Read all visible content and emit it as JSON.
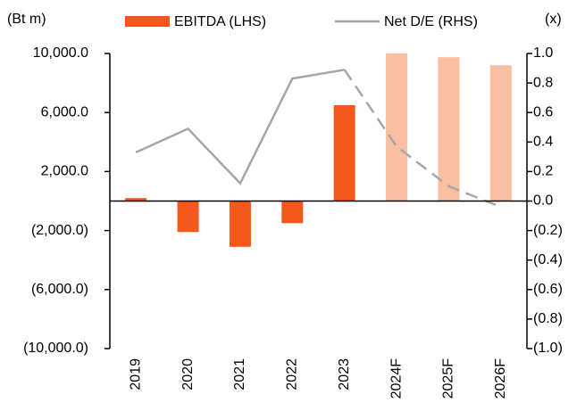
{
  "chart_data": {
    "type": "bar",
    "y_unit": "(Bt m)",
    "y2_unit": "(x)",
    "categories": [
      "2019",
      "2020",
      "2021",
      "2022",
      "2023",
      "2024F",
      "2025F",
      "2026F"
    ],
    "series": [
      {
        "name": "EBITDA (LHS)",
        "type": "bar",
        "color": "#f4581d",
        "colors": [
          "#f4581d",
          "#f4581d",
          "#f4581d",
          "#f4581d",
          "#f4581d",
          "#f9bfa0",
          "#f9bfa0",
          "#f9bfa0"
        ],
        "values": [
          200,
          -2100,
          -3100,
          -1500,
          6500,
          10000,
          9750,
          9200
        ]
      },
      {
        "name": "Net D/E (RHS)",
        "type": "line",
        "axis": "y2",
        "color": "#a6a6a6",
        "dash_from_index": 4,
        "values": [
          0.33,
          0.49,
          0.12,
          0.83,
          0.89,
          0.37,
          0.1,
          -0.04
        ]
      }
    ],
    "ylim": [
      -10000,
      10000
    ],
    "yticks": [
      {
        "value": 10000,
        "label": "10,000.0"
      },
      {
        "value": 6000,
        "label": "6,000.0"
      },
      {
        "value": 2000,
        "label": "2,000.0"
      },
      {
        "value": -2000,
        "label": "(2,000.0)"
      },
      {
        "value": -6000,
        "label": "(6,000.0)"
      },
      {
        "value": -10000,
        "label": "(10,000.0)"
      }
    ],
    "y2lim": [
      -1,
      1
    ],
    "y2ticks": [
      {
        "value": 1,
        "label": "1.0"
      },
      0.8,
      0.6,
      0.4,
      0.2,
      {
        "value": 0,
        "label": "0.0"
      },
      {
        "value": -0.2,
        "label": "(0.2)"
      },
      {
        "value": -0.4,
        "label": "(0.4)"
      },
      {
        "value": -0.6,
        "label": "(0.6)"
      },
      {
        "value": -0.8,
        "label": "(0.8)"
      },
      {
        "value": -1,
        "label": "(1.0)"
      }
    ],
    "grid": false
  }
}
